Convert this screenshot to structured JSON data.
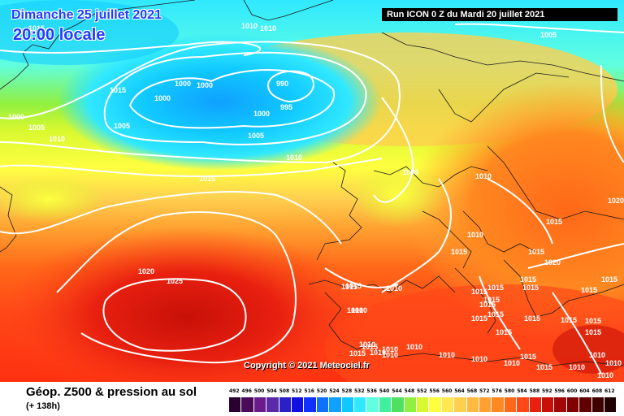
{
  "header": {
    "date": "Dimanche 25 juillet 2021",
    "time": "20:00 locale",
    "run": "Run ICON 0 Z du Mardi 20 juillet 2021"
  },
  "footer": {
    "title": "Géop. Z500 & pression au sol",
    "lead": "(+ 138h)",
    "copyright": "Copyright © 2021 Meteociel.fr"
  },
  "legend": {
    "ticks": [
      "492",
      "496",
      "500",
      "504",
      "508",
      "512",
      "516",
      "520",
      "524",
      "528",
      "532",
      "536",
      "540",
      "544",
      "548",
      "552",
      "556",
      "560",
      "564",
      "568",
      "572",
      "576",
      "580",
      "584",
      "588",
      "592",
      "596",
      "600",
      "604",
      "608",
      "612"
    ],
    "colors": [
      "#2a0030",
      "#4a0a5a",
      "#6a1a8a",
      "#5a2aa8",
      "#2a20c8",
      "#1010e0",
      "#1030ff",
      "#1070ff",
      "#10a0ff",
      "#10c8ff",
      "#30e8ff",
      "#60ffe0",
      "#40f0a0",
      "#50e060",
      "#90f040",
      "#d8f830",
      "#ffff40",
      "#ffe850",
      "#ffd050",
      "#ffb840",
      "#ffa030",
      "#ff8820",
      "#ff6818",
      "#ff4818",
      "#e82010",
      "#c81008",
      "#a00808",
      "#800000",
      "#600000",
      "#400000",
      "#200000"
    ]
  },
  "isobars": [
    {
      "label": "1015"
    },
    {
      "label": "1010"
    },
    {
      "label": "1010"
    },
    {
      "label": "1005"
    },
    {
      "label": "1015"
    },
    {
      "label": "1000"
    },
    {
      "label": "1000"
    },
    {
      "label": "990"
    },
    {
      "label": "1000"
    },
    {
      "label": "995"
    },
    {
      "label": "1000"
    },
    {
      "label": "1005"
    },
    {
      "label": "1000"
    },
    {
      "label": "1005"
    },
    {
      "label": "1010"
    },
    {
      "label": "1005"
    },
    {
      "label": "1010"
    },
    {
      "label": "1015"
    },
    {
      "label": "1005"
    },
    {
      "label": "1010"
    },
    {
      "label": "1020"
    },
    {
      "label": "1015"
    },
    {
      "label": "1010"
    },
    {
      "label": "1015"
    },
    {
      "label": "1020"
    },
    {
      "label": "1020"
    },
    {
      "label": "1025"
    },
    {
      "label": "1015"
    },
    {
      "label": "1015"
    },
    {
      "label": "1010"
    },
    {
      "label": "1015"
    },
    {
      "label": "1015"
    },
    {
      "label": "1015"
    },
    {
      "label": "1015"
    },
    {
      "label": "1015"
    },
    {
      "label": "1015"
    },
    {
      "label": "1015"
    },
    {
      "label": "1015"
    },
    {
      "label": "1015"
    },
    {
      "label": "1015"
    },
    {
      "label": "1010"
    },
    {
      "label": "1015"
    },
    {
      "label": "1015"
    },
    {
      "label": "1010"
    },
    {
      "label": "1015"
    },
    {
      "label": "1015"
    },
    {
      "label": "1015"
    },
    {
      "label": "1015"
    },
    {
      "label": "1010"
    },
    {
      "label": "1015"
    },
    {
      "label": "1015"
    },
    {
      "label": "1015"
    },
    {
      "label": "1010"
    },
    {
      "label": "1010"
    },
    {
      "label": "1015"
    },
    {
      "label": "1010"
    },
    {
      "label": "1010"
    },
    {
      "label": "1010"
    },
    {
      "label": "1010"
    },
    {
      "label": "1010"
    },
    {
      "label": "1015"
    },
    {
      "label": "1010"
    },
    {
      "label": "1010"
    },
    {
      "label": "1010"
    }
  ]
}
